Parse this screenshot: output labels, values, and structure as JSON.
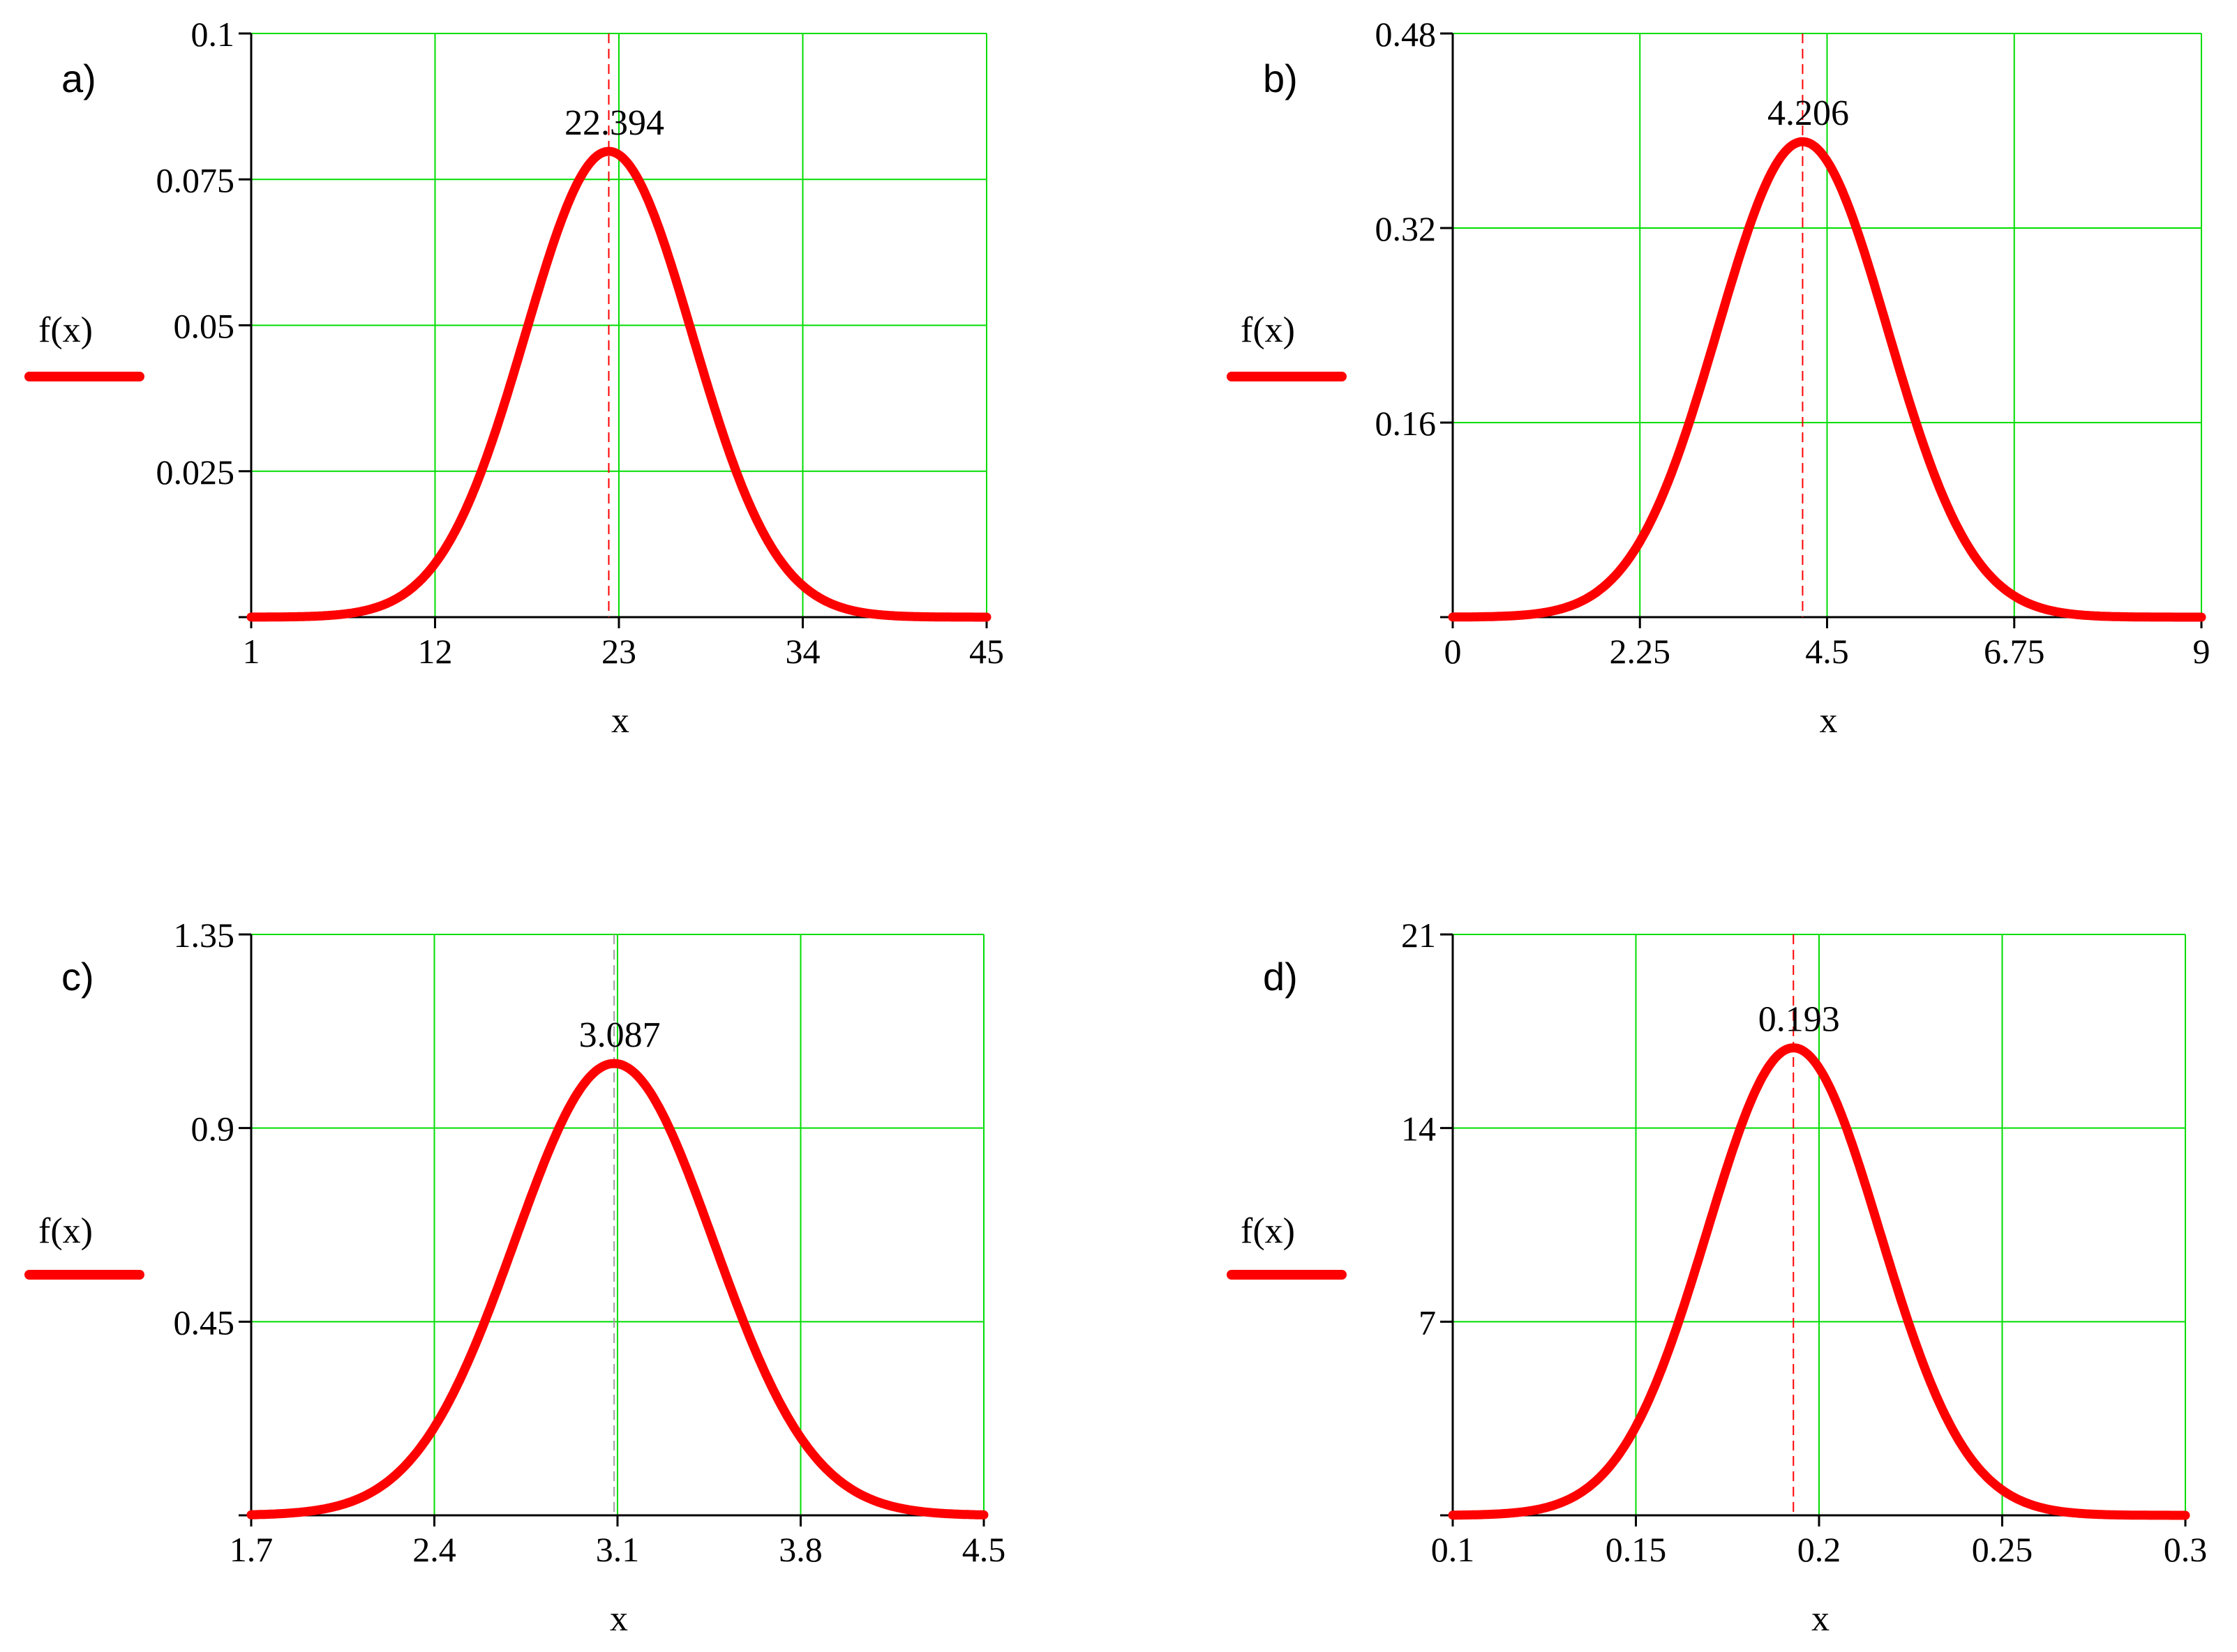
{
  "colors": {
    "curve": "#ff0000",
    "grid": "#00dd00",
    "axis": "#000000",
    "marker": "#ff0000",
    "marker_c": "#a0a0a0"
  },
  "chart_data": [
    {
      "type": "line",
      "panel_label": "a)",
      "xlabel": "x",
      "ylabel": "f(x)",
      "legend": "f(x)",
      "xlim": [
        1,
        45
      ],
      "ylim": [
        0,
        0.1
      ],
      "x_ticks": [
        "1",
        "12",
        "23",
        "34",
        "45"
      ],
      "y_ticks": [
        "0.025",
        "0.05",
        "0.075",
        "0.1"
      ],
      "grid": true,
      "distribution": {
        "mean": 22.394,
        "sd": 5.0,
        "peak": 0.0798
      },
      "marker": {
        "x": 22.394,
        "label": "22.394"
      }
    },
    {
      "type": "line",
      "panel_label": "b)",
      "xlabel": "x",
      "ylabel": "f(x)",
      "legend": "f(x)",
      "xlim": [
        0,
        9
      ],
      "ylim": [
        0,
        0.48
      ],
      "x_ticks": [
        "0",
        "2.25",
        "4.5",
        "6.75",
        "9"
      ],
      "y_ticks": [
        "0.16",
        "0.32",
        "0.48"
      ],
      "grid": true,
      "distribution": {
        "mean": 4.206,
        "sd": 1.02,
        "peak": 0.391
      },
      "marker": {
        "x": 4.206,
        "label": "4.206"
      }
    },
    {
      "type": "line",
      "panel_label": "c)",
      "xlabel": "x",
      "ylabel": "f(x)",
      "legend": "f(x)",
      "xlim": [
        1.7,
        4.5
      ],
      "ylim": [
        0,
        1.35
      ],
      "x_ticks": [
        "1.7",
        "2.4",
        "3.1",
        "3.8",
        "4.5"
      ],
      "y_ticks": [
        "0.45",
        "0.9",
        "1.35"
      ],
      "grid": true,
      "distribution": {
        "mean": 3.087,
        "sd": 0.38,
        "peak": 1.05
      },
      "marker": {
        "x": 3.087,
        "label": "3.087"
      }
    },
    {
      "type": "line",
      "panel_label": "d)",
      "xlabel": "x",
      "ylabel": "f(x)",
      "legend": "f(x)",
      "xlim": [
        0.1,
        0.3
      ],
      "ylim": [
        0,
        21
      ],
      "x_ticks": [
        "0.1",
        "0.15",
        "0.2",
        "0.25",
        "0.3"
      ],
      "y_ticks": [
        "7",
        "14",
        "21"
      ],
      "grid": true,
      "distribution": {
        "mean": 0.193,
        "sd": 0.0236,
        "peak": 16.9
      },
      "marker": {
        "x": 0.193,
        "label": "0.193"
      }
    }
  ]
}
